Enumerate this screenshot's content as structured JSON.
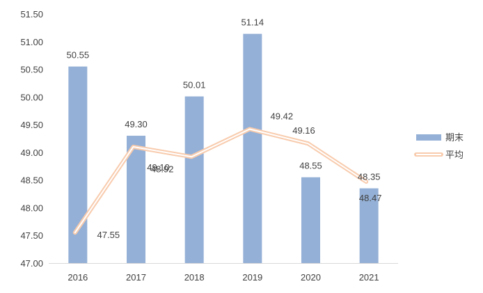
{
  "chart_data": {
    "type": "bar",
    "categories": [
      "2016",
      "2017",
      "2018",
      "2019",
      "2020",
      "2021"
    ],
    "series": [
      {
        "name": "期末",
        "type": "bar",
        "color": "#94B0D6",
        "values": [
          50.55,
          49.3,
          50.01,
          51.14,
          48.55,
          48.35
        ],
        "labels": [
          "50.55",
          "49.30",
          "50.01",
          "51.14",
          "48.55",
          "48.35"
        ]
      },
      {
        "name": "平均",
        "type": "line",
        "color": "#F8CBAD",
        "values": [
          47.55,
          49.1,
          48.92,
          49.42,
          49.16,
          48.47
        ],
        "labels": [
          "47.55",
          "49.10",
          "48.92",
          "49.42",
          "49.16",
          "48.47"
        ]
      }
    ],
    "ylim": [
      47.0,
      51.5
    ],
    "yticks": [
      "47.00",
      "47.50",
      "48.00",
      "48.50",
      "49.00",
      "49.50",
      "50.00",
      "50.50",
      "51.00",
      "51.50"
    ],
    "grid": false,
    "legend": "right"
  }
}
